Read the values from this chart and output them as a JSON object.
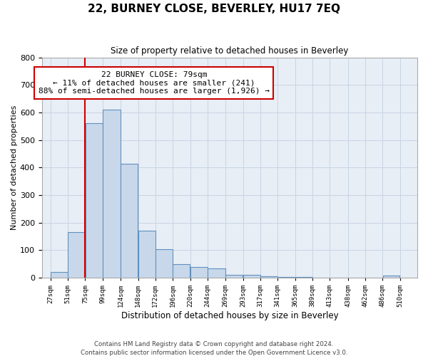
{
  "title": "22, BURNEY CLOSE, BEVERLEY, HU17 7EQ",
  "subtitle": "Size of property relative to detached houses in Beverley",
  "xlabel": "Distribution of detached houses by size in Beverley",
  "ylabel": "Number of detached properties",
  "footer_line1": "Contains HM Land Registry data © Crown copyright and database right 2024.",
  "footer_line2": "Contains public sector information licensed under the Open Government Licence v3.0.",
  "annotation_title": "22 BURNEY CLOSE: 79sqm",
  "annotation_line1": "← 11% of detached houses are smaller (241)",
  "annotation_line2": "88% of semi-detached houses are larger (1,926) →",
  "bar_left_edges": [
    27,
    51,
    75,
    99,
    124,
    148,
    172,
    196,
    220,
    244,
    269,
    293,
    317,
    341,
    365,
    389,
    413,
    438,
    462,
    486
  ],
  "bar_widths": [
    24,
    24,
    24,
    25,
    24,
    24,
    24,
    24,
    24,
    25,
    24,
    24,
    24,
    24,
    24,
    24,
    25,
    24,
    24,
    24
  ],
  "bar_heights": [
    20,
    165,
    560,
    610,
    415,
    170,
    103,
    50,
    40,
    35,
    12,
    10,
    5,
    3,
    2,
    1,
    0,
    0,
    0,
    8
  ],
  "bar_fill_color": "#c8d8ea",
  "bar_edge_color": "#6090c0",
  "vline_color": "#cc0000",
  "vline_x": 75,
  "annotation_box_edge_color": "#cc0000",
  "grid_color": "#c8d4e4",
  "background_color": "#e8eef6",
  "ylim": [
    0,
    800
  ],
  "yticks": [
    0,
    100,
    200,
    300,
    400,
    500,
    600,
    700,
    800
  ],
  "tick_labels": [
    "27sqm",
    "51sqm",
    "75sqm",
    "99sqm",
    "124sqm",
    "148sqm",
    "172sqm",
    "196sqm",
    "220sqm",
    "244sqm",
    "269sqm",
    "293sqm",
    "317sqm",
    "341sqm",
    "365sqm",
    "389sqm",
    "413sqm",
    "438sqm",
    "462sqm",
    "486sqm",
    "510sqm"
  ]
}
